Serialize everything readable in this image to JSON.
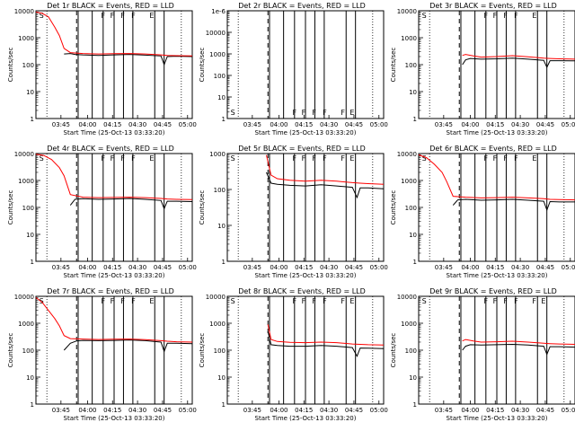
{
  "figure": {
    "xlabel": "Start Time (25-Oct-13 03:33:20)",
    "ylabel": "Counts/sec",
    "xticks": [
      "03:45",
      "04:00",
      "04:15",
      "04:30",
      "04:45",
      "05:00"
    ],
    "yticks_log": [
      "1",
      "10",
      "100",
      "1000",
      "10000"
    ],
    "legend_note": "BLACK = Events, RED = LLD",
    "colors": {
      "events": "#000000",
      "lld": "#ff0000"
    }
  },
  "chart_data": [
    {
      "type": "line",
      "title": "Det 1r BLACK = Events, RED = LLD",
      "ylim": [
        1,
        10000
      ],
      "yscale": "log",
      "xlim": [
        0,
        100
      ],
      "flags": [
        "S",
        "F",
        "F",
        "F",
        "F",
        "E"
      ],
      "series": [
        {
          "name": "Events",
          "x": [
            18,
            22,
            25,
            30,
            40,
            50,
            60,
            70,
            80,
            82,
            84,
            90,
            100
          ],
          "values": [
            250,
            260,
            240,
            230,
            220,
            230,
            240,
            225,
            210,
            100,
            200,
            205,
            200
          ]
        },
        {
          "name": "LLD",
          "x": [
            0,
            4,
            8,
            12,
            15,
            18,
            22,
            30,
            40,
            50,
            60,
            70,
            80,
            84,
            90,
            100
          ],
          "values": [
            9000,
            8000,
            6000,
            2500,
            1200,
            400,
            280,
            260,
            250,
            255,
            260,
            250,
            230,
            220,
            215,
            210
          ]
        }
      ]
    },
    {
      "type": "line",
      "title": "Det 2r BLACK = Events, RED = LLD",
      "ylim": [
        1,
        1e-06
      ],
      "yscale": "log",
      "xlim": [
        0,
        100
      ],
      "yticks": [
        "1",
        "10",
        "100",
        "1000",
        "10000",
        "1e-6"
      ],
      "flags": [
        "S",
        "F",
        "F",
        "F",
        "F",
        "F",
        "E"
      ],
      "series": []
    },
    {
      "type": "line",
      "title": "Det 3r BLACK = Events, RED = LLD",
      "ylim": [
        1,
        10000
      ],
      "yscale": "log",
      "xlim": [
        0,
        100
      ],
      "flags": [
        "S",
        "F",
        "F",
        "F",
        "F",
        "E"
      ],
      "series": [
        {
          "name": "Events",
          "x": [
            28,
            30,
            33,
            40,
            50,
            60,
            70,
            80,
            82,
            84,
            90,
            100
          ],
          "values": [
            100,
            150,
            170,
            160,
            165,
            175,
            160,
            145,
            80,
            140,
            140,
            138
          ]
        },
        {
          "name": "LLD",
          "x": [
            28,
            30,
            35,
            40,
            50,
            60,
            70,
            80,
            84,
            90,
            100
          ],
          "values": [
            220,
            240,
            210,
            190,
            200,
            215,
            195,
            175,
            170,
            165,
            160
          ]
        }
      ]
    },
    {
      "type": "line",
      "title": "Det 4r BLACK = Events, RED = LLD",
      "ylim": [
        1,
        10000
      ],
      "yscale": "log",
      "xlim": [
        0,
        100
      ],
      "flags": [
        "S",
        "F",
        "F",
        "F",
        "F",
        "E"
      ],
      "series": [
        {
          "name": "Events",
          "x": [
            22,
            25,
            30,
            40,
            50,
            60,
            70,
            80,
            82,
            84,
            90,
            100
          ],
          "values": [
            120,
            200,
            210,
            200,
            205,
            215,
            200,
            180,
            90,
            170,
            170,
            165
          ]
        },
        {
          "name": "LLD",
          "x": [
            0,
            5,
            10,
            15,
            18,
            22,
            30,
            40,
            50,
            60,
            70,
            80,
            84,
            90,
            100
          ],
          "values": [
            9500,
            8500,
            6000,
            3000,
            1500,
            300,
            240,
            230,
            235,
            240,
            230,
            215,
            205,
            200,
            195
          ]
        }
      ]
    },
    {
      "type": "line",
      "title": "Det 5r BLACK = Events, RED = LLD",
      "ylim": [
        1,
        1000
      ],
      "yscale": "log",
      "xlim": [
        0,
        100
      ],
      "yticks": [
        "1",
        "10",
        "100",
        "1000"
      ],
      "flags": [
        "S",
        "F",
        "F",
        "F",
        "F",
        "F",
        "E"
      ],
      "series": [
        {
          "name": "Events",
          "x": [
            25,
            28,
            32,
            40,
            50,
            60,
            70,
            80,
            83,
            85,
            90,
            100
          ],
          "values": [
            300,
            150,
            140,
            130,
            125,
            135,
            125,
            115,
            60,
            110,
            110,
            105
          ]
        },
        {
          "name": "LLD",
          "x": [
            25,
            28,
            32,
            40,
            50,
            60,
            70,
            80,
            85,
            90,
            100
          ],
          "values": [
            900,
            250,
            200,
            180,
            170,
            180,
            170,
            155,
            150,
            145,
            140
          ]
        }
      ]
    },
    {
      "type": "line",
      "title": "Det 6r BLACK = Events, RED = LLD",
      "ylim": [
        1,
        10000
      ],
      "yscale": "log",
      "xlim": [
        0,
        100
      ],
      "flags": [
        "S",
        "F",
        "F",
        "F",
        "F",
        "E"
      ],
      "series": [
        {
          "name": "Events",
          "x": [
            22,
            25,
            30,
            40,
            50,
            60,
            70,
            80,
            82,
            84,
            90,
            100
          ],
          "values": [
            120,
            190,
            200,
            185,
            190,
            200,
            185,
            170,
            80,
            165,
            160,
            160
          ]
        },
        {
          "name": "LLD",
          "x": [
            0,
            5,
            10,
            15,
            18,
            22,
            30,
            40,
            50,
            60,
            70,
            80,
            84,
            90,
            100
          ],
          "values": [
            9000,
            7000,
            4000,
            2000,
            900,
            260,
            240,
            225,
            230,
            240,
            225,
            210,
            200,
            195,
            190
          ]
        }
      ]
    },
    {
      "type": "line",
      "title": "Det 7r BLACK = Events, RED = LLD",
      "ylim": [
        1,
        10000
      ],
      "yscale": "log",
      "xlim": [
        0,
        100
      ],
      "flags": [
        "S",
        "F",
        "F",
        "F",
        "F",
        "E"
      ],
      "series": [
        {
          "name": "Events",
          "x": [
            18,
            22,
            26,
            30,
            40,
            50,
            60,
            70,
            80,
            82,
            84,
            90,
            100
          ],
          "values": [
            100,
            180,
            220,
            230,
            225,
            230,
            240,
            225,
            200,
            90,
            180,
            180,
            175
          ]
        },
        {
          "name": "LLD",
          "x": [
            0,
            4,
            8,
            12,
            15,
            18,
            22,
            30,
            40,
            50,
            60,
            70,
            80,
            84,
            90,
            100
          ],
          "values": [
            9000,
            6000,
            3000,
            1500,
            800,
            350,
            270,
            260,
            250,
            255,
            260,
            245,
            225,
            215,
            205,
            200
          ]
        }
      ]
    },
    {
      "type": "line",
      "title": "Det 8r BLACK = Events, RED = LLD",
      "ylim": [
        1,
        10000
      ],
      "yscale": "log",
      "xlim": [
        0,
        100
      ],
      "flags": [
        "S",
        "F",
        "F",
        "F",
        "F",
        "F",
        "E"
      ],
      "series": [
        {
          "name": "Events",
          "x": [
            26,
            28,
            32,
            40,
            50,
            60,
            70,
            80,
            83,
            85,
            90,
            100
          ],
          "values": [
            500,
            160,
            150,
            140,
            140,
            150,
            140,
            125,
            60,
            120,
            118,
            115
          ]
        },
        {
          "name": "LLD",
          "x": [
            26,
            28,
            32,
            40,
            50,
            60,
            70,
            80,
            85,
            90,
            100
          ],
          "values": [
            900,
            250,
            210,
            195,
            190,
            200,
            190,
            170,
            165,
            160,
            155
          ]
        }
      ]
    },
    {
      "type": "line",
      "title": "Det 9r BLACK = Events, RED = LLD",
      "ylim": [
        1,
        10000
      ],
      "yscale": "log",
      "xlim": [
        0,
        100
      ],
      "flags": [
        "S",
        "F",
        "F",
        "F",
        "F",
        "F",
        "E"
      ],
      "series": [
        {
          "name": "Events",
          "x": [
            28,
            30,
            33,
            40,
            50,
            60,
            70,
            80,
            82,
            84,
            90,
            100
          ],
          "values": [
            100,
            140,
            160,
            155,
            160,
            165,
            155,
            140,
            70,
            135,
            135,
            130
          ]
        },
        {
          "name": "LLD",
          "x": [
            28,
            30,
            35,
            40,
            50,
            60,
            70,
            80,
            84,
            90,
            100
          ],
          "values": [
            220,
            250,
            220,
            200,
            205,
            215,
            200,
            180,
            175,
            170,
            165
          ]
        }
      ]
    }
  ]
}
